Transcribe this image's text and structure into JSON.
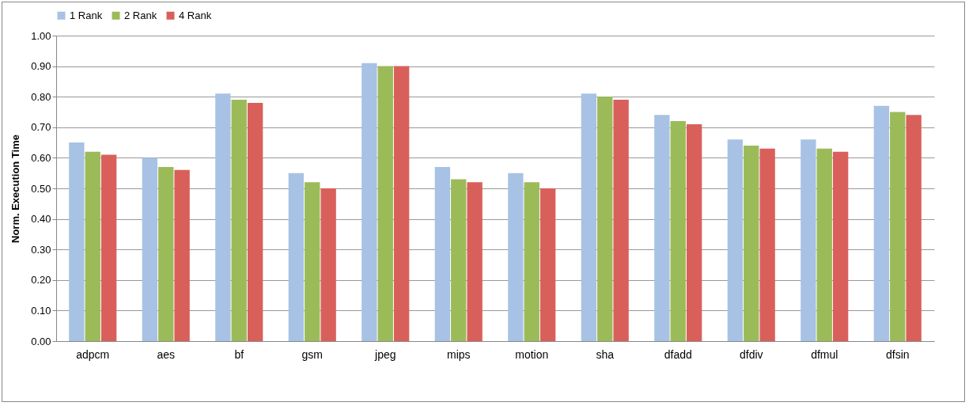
{
  "chart_data": {
    "type": "bar",
    "ylabel": "Norm. Execution Time",
    "categories": [
      "adpcm",
      "aes",
      "bf",
      "gsm",
      "jpeg",
      "mips",
      "motion",
      "sha",
      "dfadd",
      "dfdiv",
      "dfmul",
      "dfsin"
    ],
    "series": [
      {
        "name": "1 Rank",
        "color": "#a7c2e4",
        "values": [
          0.65,
          0.6,
          0.81,
          0.55,
          0.91,
          0.57,
          0.55,
          0.81,
          0.74,
          0.66,
          0.66,
          0.77
        ]
      },
      {
        "name": "2 Rank",
        "color": "#9bbb59",
        "values": [
          0.62,
          0.57,
          0.79,
          0.52,
          0.9,
          0.53,
          0.52,
          0.8,
          0.72,
          0.64,
          0.63,
          0.75
        ]
      },
      {
        "name": "4 Rank",
        "color": "#d9605a",
        "values": [
          0.61,
          0.56,
          0.78,
          0.5,
          0.9,
          0.52,
          0.5,
          0.79,
          0.71,
          0.63,
          0.62,
          0.74
        ]
      }
    ],
    "ylim": [
      0,
      1
    ],
    "yticks": [
      {
        "value": 0,
        "label": "0.00"
      },
      {
        "value": 0.1,
        "label": "0.10"
      },
      {
        "value": 0.2,
        "label": "0.20"
      },
      {
        "value": 0.3,
        "label": "0.30"
      },
      {
        "value": 0.4,
        "label": "0.40"
      },
      {
        "value": 0.5,
        "label": "0.50"
      },
      {
        "value": 0.6,
        "label": "0.60"
      },
      {
        "value": 0.7,
        "label": "0.70"
      },
      {
        "value": 0.8,
        "label": "0.80"
      },
      {
        "value": 0.9,
        "label": "0.90"
      },
      {
        "value": 1,
        "label": "1.00"
      }
    ],
    "grid": "y",
    "legend": "top"
  }
}
